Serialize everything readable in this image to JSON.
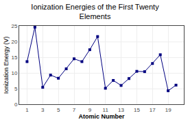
{
  "chart_data": {
    "type": "line",
    "title": "Ionization Energies of the First Twenty\nElements",
    "xlabel": "Atomic Number",
    "ylabel": "Ionization Energy (V)",
    "x": [
      1,
      2,
      3,
      4,
      5,
      6,
      7,
      8,
      9,
      10,
      11,
      12,
      13,
      14,
      15,
      16,
      17,
      18,
      19,
      20
    ],
    "values": [
      13.6,
      24.6,
      5.4,
      9.3,
      8.3,
      11.3,
      14.5,
      13.6,
      17.4,
      21.6,
      5.1,
      7.6,
      6.0,
      8.2,
      10.5,
      10.4,
      13.0,
      15.8,
      4.3,
      6.1
    ],
    "color": "#000080",
    "marker": "square",
    "xlim": [
      0,
      21
    ],
    "xticks": [
      1,
      3,
      5,
      7,
      9,
      11,
      13,
      15,
      17,
      19
    ],
    "ylim": [
      0,
      25
    ],
    "yticks": [
      0,
      5,
      10,
      15,
      20,
      25
    ],
    "grid": true
  }
}
